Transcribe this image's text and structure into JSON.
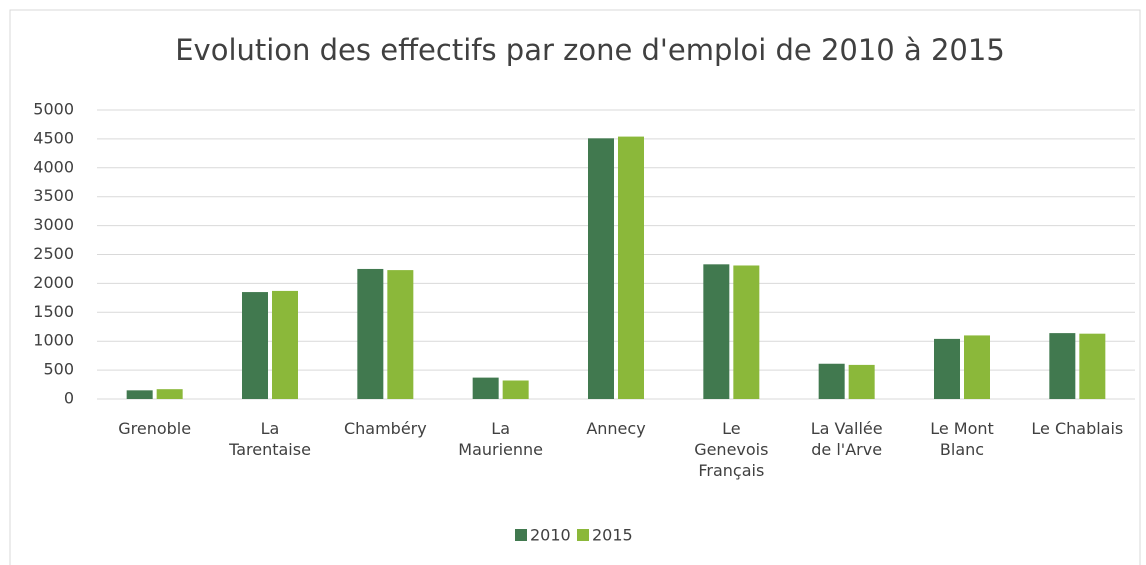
{
  "chart_data": {
    "type": "bar",
    "title": "Evolution des effectifs par zone d'emploi de 2010 à 2015",
    "categories": [
      "Grenoble",
      "La Tarentaise",
      "Chambéry",
      "La Maurienne",
      "Annecy",
      "Le Genevois Français",
      "La Vallée de l'Arve",
      "Le Mont Blanc",
      "Le Chablais"
    ],
    "series": [
      {
        "name": "2010",
        "color": "#41794f",
        "values": [
          150,
          1850,
          2250,
          370,
          4510,
          2330,
          610,
          1040,
          1140
        ]
      },
      {
        "name": "2015",
        "color": "#8bb83a",
        "values": [
          170,
          1870,
          2230,
          320,
          4540,
          2310,
          590,
          1100,
          1130
        ]
      }
    ],
    "ylim": [
      0,
      5000
    ],
    "yticks": [
      0,
      500,
      1000,
      1500,
      2000,
      2500,
      3000,
      3500,
      4000,
      4500,
      5000
    ],
    "grid": true,
    "legend": "bottom"
  }
}
